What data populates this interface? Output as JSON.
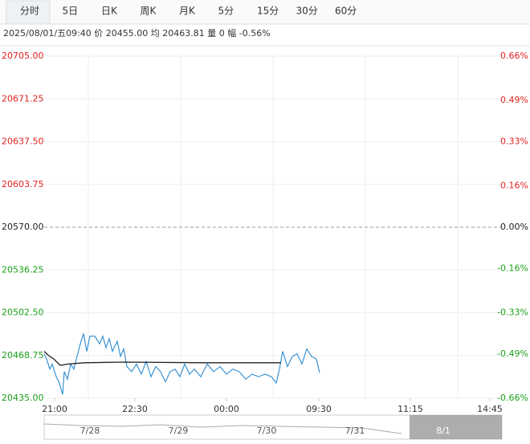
{
  "tabs": [
    "分时",
    "5日",
    "日K",
    "周K",
    "月K",
    "5分",
    "15分",
    "30分",
    "60分"
  ],
  "info": "2025/08/01/五09:40 价 20455.00 均 20463.81 量 0 幅 -0.56%",
  "chart_data": {
    "type": "line",
    "xlim": [
      0,
      570
    ],
    "xticks": [
      {
        "value": 13,
        "label": "21:00"
      },
      {
        "value": 113,
        "label": "22:30"
      },
      {
        "value": 227,
        "label": "00:00"
      },
      {
        "value": 342,
        "label": "09:30"
      },
      {
        "value": 456,
        "label": "11:15"
      },
      {
        "value": 555,
        "label": "14:45"
      }
    ],
    "ylim": [
      20435,
      20705
    ],
    "yticks": [
      {
        "value": 20705,
        "label": "20705.00"
      },
      {
        "value": 20671.25,
        "label": "20671.25"
      },
      {
        "value": 20637.5,
        "label": "20637.50"
      },
      {
        "value": 20603.75,
        "label": "20603.75"
      },
      {
        "value": 20570,
        "label": "20570.00"
      },
      {
        "value": 20536.25,
        "label": "20536.25"
      },
      {
        "value": 20502.5,
        "label": "20502.50"
      },
      {
        "value": 20468.75,
        "label": "20468.75"
      },
      {
        "value": 20435,
        "label": "20435.00"
      }
    ],
    "y2lim": [
      -0.66,
      0.66
    ],
    "y2ticks": [
      {
        "value": 0.66,
        "label": "0.66%"
      },
      {
        "value": 0.49,
        "label": "0.49%"
      },
      {
        "value": 0.33,
        "label": "0.33%"
      },
      {
        "value": 0.16,
        "label": "0.16%"
      },
      {
        "value": 0,
        "label": "0.00%"
      },
      {
        "value": -0.16,
        "label": "-0.16%"
      },
      {
        "value": -0.33,
        "label": "-0.33%"
      },
      {
        "value": -0.49,
        "label": "-0.49%"
      },
      {
        "value": -0.66,
        "label": "-0.66%"
      }
    ],
    "ref": 20570,
    "series": [
      {
        "color": "#2a8bd0",
        "x": [
          0,
          3,
          7,
          10,
          15,
          19,
          23,
          25,
          29,
          33,
          37,
          41,
          45,
          49,
          53,
          57,
          63,
          69,
          73,
          77,
          81,
          85,
          91,
          95,
          99,
          103,
          109,
          115,
          121,
          127,
          133,
          139,
          145,
          151,
          157,
          163,
          169,
          175,
          181,
          187,
          195,
          203,
          211,
          219,
          227,
          235,
          243,
          251,
          259,
          267,
          275,
          283,
          289,
          293,
          297,
          303,
          309,
          315,
          321,
          327,
          333,
          339,
          343
        ],
        "values": [
          20470,
          20466,
          20458,
          20462,
          20452,
          20447,
          20438,
          20456,
          20450,
          20462,
          20458,
          20468,
          20478,
          20486,
          20472,
          20484,
          20484,
          20478,
          20484,
          20475,
          20482,
          20472,
          20480,
          20468,
          20474,
          20460,
          20456,
          20462,
          20454,
          20464,
          20452,
          20460,
          20456,
          20448,
          20456,
          20458,
          20452,
          20462,
          20454,
          20458,
          20452,
          20462,
          20456,
          20460,
          20454,
          20458,
          20456,
          20450,
          20454,
          20452,
          20454,
          20452,
          20447,
          20458,
          20472,
          20460,
          20468,
          20470,
          20462,
          20474,
          20468,
          20466,
          20455
        ]
      },
      {
        "color": "#222222",
        "x": [
          0,
          5,
          12,
          20,
          30,
          50,
          100,
          200,
          295
        ],
        "values": [
          20472,
          20469,
          20466,
          20461,
          20462,
          20463,
          20463.5,
          20463,
          20463
        ]
      }
    ],
    "navigator": [
      "7/28",
      "7/29",
      "7/30",
      "7/31",
      "8/1"
    ]
  }
}
